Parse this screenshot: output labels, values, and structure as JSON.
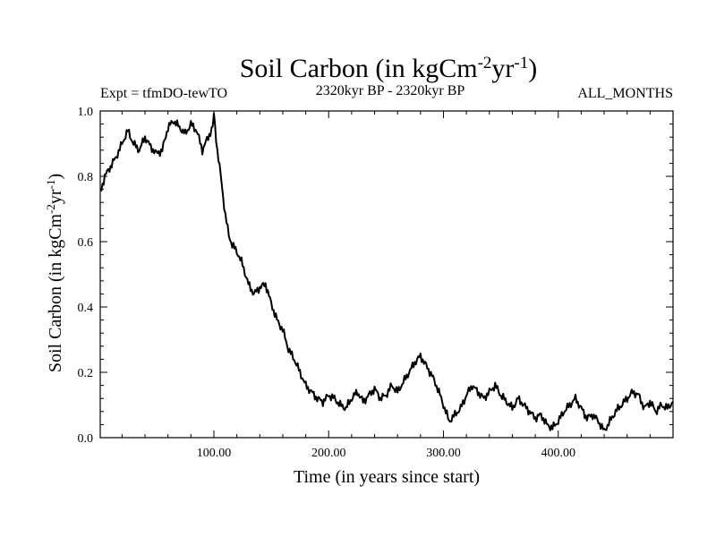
{
  "chart_data": {
    "type": "line",
    "title": {
      "main": "Soil Carbon (in kgCm",
      "sup1": "-2",
      "mid": "yr",
      "sup2": "-1",
      "end": ")"
    },
    "subtitle_left": "Expt = tfmDO-tewTO",
    "subtitle_center": "2320kyr BP - 2320kyr BP",
    "subtitle_right": "ALL_MONTHS",
    "xlabel": "Time (in years since start)",
    "ylabel": {
      "main": "Soil Carbon (in kgCm",
      "sup1": "-2",
      "mid": "yr",
      "sup2": "-1",
      "end": ")"
    },
    "xlim": [
      1,
      500
    ],
    "ylim": [
      0,
      1.0
    ],
    "xticks": [
      100,
      200,
      300,
      400
    ],
    "xtick_labels": [
      "100.00",
      "200.00",
      "300.00",
      "400.00"
    ],
    "yticks": [
      0,
      0.2,
      0.4,
      0.6,
      0.8,
      1.0
    ],
    "ytick_labels": [
      "0.0",
      "0.2",
      "0.4",
      "0.6",
      "0.8",
      "1.0"
    ],
    "series": [
      {
        "name": "Soil Carbon",
        "x": [
          1,
          5,
          10,
          15,
          20,
          25,
          30,
          35,
          40,
          45,
          50,
          55,
          60,
          65,
          70,
          75,
          80,
          85,
          90,
          95,
          99,
          100,
          103,
          106,
          110,
          113,
          116,
          120,
          125,
          130,
          135,
          140,
          145,
          150,
          155,
          160,
          165,
          170,
          175,
          180,
          185,
          190,
          195,
          200,
          205,
          210,
          215,
          220,
          225,
          230,
          235,
          240,
          245,
          250,
          255,
          260,
          265,
          270,
          275,
          280,
          285,
          290,
          295,
          300,
          305,
          310,
          315,
          320,
          325,
          330,
          335,
          340,
          345,
          350,
          355,
          360,
          365,
          370,
          375,
          380,
          385,
          390,
          395,
          400,
          405,
          410,
          415,
          420,
          425,
          430,
          435,
          440,
          445,
          450,
          455,
          460,
          465,
          470,
          475,
          480,
          485,
          490,
          495,
          500
        ],
        "y": [
          0.75,
          0.8,
          0.83,
          0.86,
          0.9,
          0.94,
          0.9,
          0.88,
          0.92,
          0.89,
          0.87,
          0.88,
          0.95,
          0.97,
          0.95,
          0.93,
          0.96,
          0.94,
          0.88,
          0.92,
          0.95,
          0.99,
          0.88,
          0.8,
          0.68,
          0.62,
          0.59,
          0.57,
          0.53,
          0.47,
          0.44,
          0.46,
          0.47,
          0.41,
          0.36,
          0.33,
          0.27,
          0.24,
          0.2,
          0.16,
          0.14,
          0.12,
          0.11,
          0.13,
          0.12,
          0.1,
          0.09,
          0.12,
          0.14,
          0.11,
          0.13,
          0.15,
          0.12,
          0.13,
          0.16,
          0.14,
          0.17,
          0.2,
          0.23,
          0.25,
          0.22,
          0.19,
          0.15,
          0.1,
          0.05,
          0.07,
          0.09,
          0.13,
          0.16,
          0.14,
          0.12,
          0.14,
          0.16,
          0.13,
          0.11,
          0.09,
          0.12,
          0.1,
          0.08,
          0.06,
          0.07,
          0.04,
          0.03,
          0.05,
          0.08,
          0.1,
          0.12,
          0.09,
          0.06,
          0.07,
          0.05,
          0.02,
          0.05,
          0.08,
          0.1,
          0.12,
          0.14,
          0.13,
          0.09,
          0.11,
          0.08,
          0.1,
          0.09,
          0.11
        ]
      }
    ]
  }
}
